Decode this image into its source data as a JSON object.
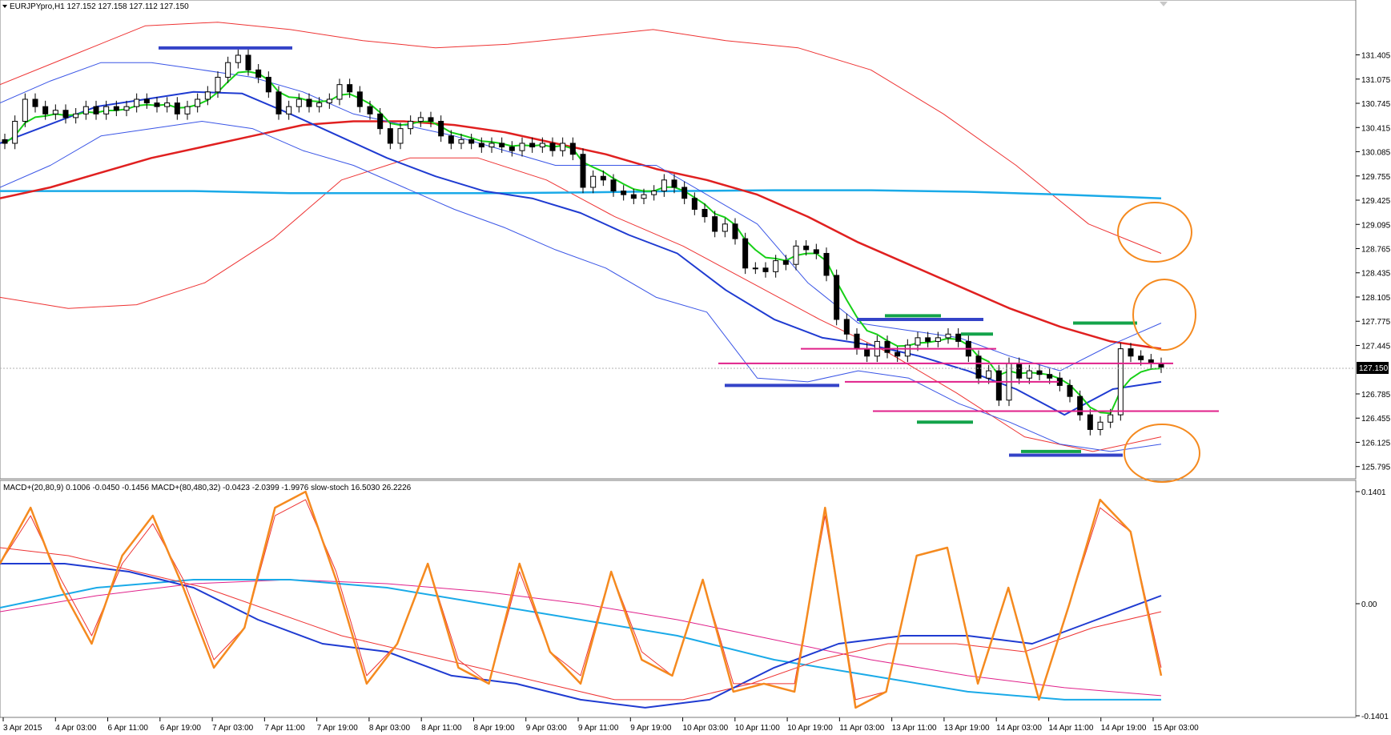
{
  "window": {
    "symbol_header": "EURJPYpro,H1  127.152 127.158 127.112 127.150",
    "indicator_header": "MACD+(20,80,9) 0.1006 -0.0450 -0.1456   MACD+(80,480,32) -0.0423 -2.0399 -1.9976   slow-stoch 16.5030 26.2226",
    "current_price_label": "127.150"
  },
  "chart_data": [
    {
      "type": "candlestick",
      "symbol": "EURJPYpro,H1",
      "ylim": [
        125.65,
        132.0
      ],
      "y_ticks": [
        "131.405",
        "131.075",
        "130.745",
        "130.415",
        "130.085",
        "129.755",
        "129.425",
        "129.095",
        "128.765",
        "128.435",
        "128.105",
        "127.775",
        "127.445",
        "127.150",
        "126.785",
        "126.455",
        "126.125",
        "125.795"
      ],
      "y_tick_values": [
        131.405,
        131.075,
        130.745,
        130.415,
        130.085,
        129.755,
        129.425,
        129.095,
        128.765,
        128.435,
        128.105,
        127.775,
        127.445,
        127.15,
        126.785,
        126.455,
        126.125,
        125.795
      ],
      "x_ticks": [
        "3 Apr 2015",
        "4 Apr 03:00",
        "6 Apr 11:00",
        "6 Apr 19:00",
        "7 Apr 03:00",
        "7 Apr 11:00",
        "7 Apr 19:00",
        "8 Apr 03:00",
        "8 Apr 11:00",
        "8 Apr 19:00",
        "9 Apr 03:00",
        "9 Apr 11:00",
        "9 Apr 19:00",
        "10 Apr 03:00",
        "10 Apr 11:00",
        "10 Apr 19:00",
        "11 Apr 03:00",
        "13 Apr 11:00",
        "13 Apr 19:00",
        "14 Apr 03:00",
        "14 Apr 11:00",
        "14 Apr 19:00",
        "15 Apr 03:00"
      ],
      "close": [
        130.2,
        130.5,
        130.8,
        130.7,
        130.6,
        130.65,
        130.55,
        130.6,
        130.7,
        130.6,
        130.7,
        130.65,
        130.7,
        130.8,
        130.75,
        130.7,
        130.75,
        130.6,
        130.7,
        130.8,
        130.9,
        131.1,
        131.3,
        131.4,
        131.2,
        131.1,
        130.9,
        130.6,
        130.7,
        130.8,
        130.7,
        130.75,
        130.8,
        131.0,
        130.9,
        130.7,
        130.6,
        130.4,
        130.2,
        130.4,
        130.5,
        130.55,
        130.5,
        130.3,
        130.2,
        130.25,
        130.2,
        130.15,
        130.2,
        130.15,
        130.1,
        130.2,
        130.15,
        130.2,
        130.1,
        130.2,
        130.05,
        129.6,
        129.75,
        129.7,
        129.55,
        129.5,
        129.45,
        129.5,
        129.55,
        129.7,
        129.6,
        129.45,
        129.3,
        129.2,
        129.0,
        129.1,
        128.9,
        128.5,
        128.5,
        128.45,
        128.6,
        128.55,
        128.8,
        128.75,
        128.7,
        128.4,
        127.8,
        127.6,
        127.4,
        127.3,
        127.5,
        127.35,
        127.3,
        127.45,
        127.55,
        127.5,
        127.55,
        127.6,
        127.5,
        127.3,
        127.0,
        127.1,
        126.7,
        127.2,
        127.0,
        127.1,
        127.05,
        127.0,
        126.9,
        126.75,
        126.5,
        126.3,
        126.4,
        126.5,
        127.4,
        127.3,
        127.25,
        127.2,
        127.15
      ],
      "bollinger_center": [
        130.2,
        130.45,
        130.7,
        130.8,
        130.9,
        130.88,
        130.6,
        130.3,
        130.0,
        129.75,
        129.55,
        129.45,
        129.25,
        128.95,
        128.7,
        128.2,
        127.8,
        127.55,
        127.45,
        127.3,
        127.1,
        126.85,
        126.5,
        126.85,
        126.95
      ],
      "bollinger_upper": [
        130.75,
        131.05,
        131.3,
        131.3,
        131.2,
        131.1,
        130.9,
        130.6,
        130.45,
        130.3,
        130.1,
        129.9,
        129.9,
        129.9,
        129.5,
        129.1,
        128.3,
        127.75,
        127.65,
        127.55,
        127.3,
        127.1,
        127.45,
        127.75
      ],
      "bollinger_lower": [
        129.6,
        129.9,
        130.3,
        130.4,
        130.5,
        130.4,
        130.1,
        129.9,
        129.6,
        129.3,
        129.05,
        128.75,
        128.5,
        128.1,
        127.9,
        127.0,
        126.95,
        127.1,
        127.0,
        126.65,
        126.4,
        126.1,
        126.0,
        126.1
      ],
      "ema_long": [
        129.45,
        129.6,
        129.8,
        130.0,
        130.15,
        130.3,
        130.45,
        130.5,
        130.5,
        130.45,
        130.35,
        130.2,
        130.05,
        129.85,
        129.7,
        129.5,
        129.2,
        128.85,
        128.55,
        128.25,
        127.95,
        127.7,
        127.5,
        127.4
      ],
      "ema_very_long": [
        129.55,
        129.55,
        129.55,
        129.52,
        129.52,
        129.52,
        129.53,
        129.55,
        129.56,
        129.56,
        129.54,
        129.5,
        129.45
      ],
      "outer_envelope_upper": [
        131.0,
        131.4,
        131.8,
        131.85,
        131.75,
        131.6,
        131.5,
        131.55,
        131.65,
        131.75,
        131.6,
        131.5,
        131.2,
        130.6,
        129.9,
        129.1,
        128.7
      ],
      "outer_envelope_lower": [
        128.1,
        127.95,
        128.0,
        128.3,
        128.9,
        129.7,
        130.0,
        130.0,
        129.7,
        129.2,
        128.8,
        128.3,
        127.8,
        127.35,
        126.8,
        126.2,
        126.0,
        126.2
      ],
      "zones": {
        "green_levels": [
          127.85,
          127.6,
          127.75,
          126.4,
          126.0
        ],
        "blue_levels": [
          131.5,
          127.8,
          126.9,
          125.95
        ],
        "magenta_levels": [
          127.2,
          127.4,
          126.95,
          126.55
        ]
      }
    },
    {
      "type": "line",
      "name": "MACD+ / slow-stoch sub-window",
      "ylim": [
        -0.1401,
        0.1401
      ],
      "y_ticks": [
        "0.1401",
        "0.00",
        "-0.1401"
      ],
      "stoch_main": [
        0.05,
        0.12,
        0.02,
        -0.05,
        0.06,
        0.11,
        0.02,
        -0.08,
        -0.03,
        0.12,
        0.14,
        0.03,
        -0.1,
        -0.05,
        0.05,
        -0.08,
        -0.1,
        0.05,
        -0.06,
        -0.1,
        0.04,
        -0.07,
        -0.09,
        0.03,
        -0.11,
        -0.1,
        -0.11,
        0.12,
        -0.13,
        -0.11,
        0.06,
        0.07,
        -0.1,
        0.02,
        -0.12,
        0.0,
        0.13,
        0.09,
        -0.09
      ],
      "stoch_signal": [
        0.05,
        0.11,
        0.03,
        -0.04,
        0.05,
        0.1,
        0.03,
        -0.07,
        -0.03,
        0.11,
        0.13,
        0.04,
        -0.09,
        -0.05,
        0.05,
        -0.07,
        -0.1,
        0.04,
        -0.06,
        -0.09,
        0.04,
        -0.06,
        -0.09,
        0.03,
        -0.1,
        -0.1,
        -0.1,
        0.11,
        -0.12,
        -0.11,
        0.06,
        0.07,
        -0.1,
        0.02,
        -0.12,
        0.0,
        0.12,
        0.09,
        -0.08
      ],
      "macd_fast": [
        0.05,
        0.05,
        0.04,
        0.02,
        -0.02,
        -0.05,
        -0.06,
        -0.09,
        -0.1,
        -0.12,
        -0.13,
        -0.12,
        -0.08,
        -0.05,
        -0.04,
        -0.04,
        -0.05,
        -0.02,
        0.01
      ],
      "macd_slow_signal": [
        0.07,
        0.06,
        0.04,
        0.02,
        -0.01,
        -0.04,
        -0.06,
        -0.08,
        -0.1,
        -0.12,
        -0.12,
        -0.1,
        -0.07,
        -0.05,
        -0.05,
        -0.06,
        -0.03,
        -0.01
      ],
      "macd2_main": [
        -0.005,
        0.02,
        0.03,
        0.03,
        0.02,
        0.0,
        -0.02,
        -0.04,
        -0.07,
        -0.09,
        -0.11,
        -0.12,
        -0.12
      ],
      "macd2_signal": [
        -0.01,
        0.01,
        0.025,
        0.03,
        0.025,
        0.015,
        0.0,
        -0.02,
        -0.045,
        -0.07,
        -0.09,
        -0.105,
        -0.115
      ]
    }
  ],
  "colors": {
    "bg": "#ffffff",
    "grid": "#c8c8c8",
    "candle": "#000000",
    "bollinger": "#1f3bd1",
    "bollinger_bands": "#3a55e6",
    "ema_green": "#17d017",
    "ema_long_red": "#e02020",
    "envelope_red": "#ee3333",
    "ema_cyan": "#1aaae8",
    "orange": "#f58a1f",
    "magenta": "#e0208a",
    "green_level": "#13a34a",
    "blue_level": "#3443c8"
  }
}
